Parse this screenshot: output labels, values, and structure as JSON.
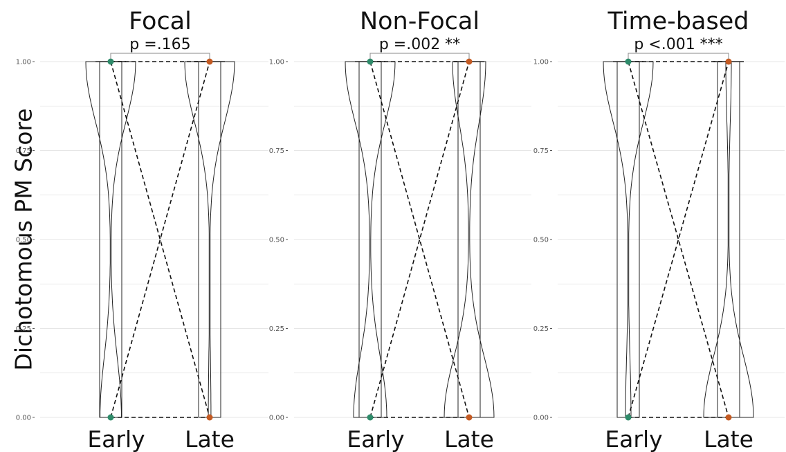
{
  "figure": {
    "ylabel": "Dichotomous PM Score",
    "colors": {
      "early": "#2e8b6a",
      "late": "#c45a22",
      "grid": "#e6e6e6",
      "outline": "#222222",
      "tick": "#555555"
    }
  },
  "chart_data": [
    {
      "type": "violin",
      "title": "Focal",
      "annotation": "p =.165",
      "categories": [
        "Early",
        "Late"
      ],
      "ylim": [
        0,
        1
      ],
      "yticks": [
        "0.00",
        "0.25",
        "0.50",
        "0.75",
        "1.00"
      ],
      "grid": true,
      "means": {
        "Early": [
          1.0,
          0.0
        ],
        "Late": [
          1.0,
          0.0
        ]
      },
      "proportion_at_1": {
        "Early": 0.7,
        "Late": 0.95
      }
    },
    {
      "type": "violin",
      "title": "Non-Focal",
      "annotation": "p =.002 **",
      "categories": [
        "Early",
        "Late"
      ],
      "ylim": [
        0,
        1
      ],
      "yticks": [
        "0.00",
        "0.25",
        "0.50",
        "0.75",
        "1.00"
      ],
      "grid": true,
      "means": {
        "Early": [
          1.0,
          0.0
        ],
        "Late": [
          1.0,
          0.0
        ]
      },
      "proportion_at_1": {
        "Early": 0.6,
        "Late": 0.4
      }
    },
    {
      "type": "violin",
      "title": "Time-based",
      "annotation": "p <.001 ***",
      "categories": [
        "Early",
        "Late"
      ],
      "ylim": [
        0,
        1
      ],
      "yticks": [
        "0.00",
        "0.25",
        "0.50",
        "0.75",
        "1.00"
      ],
      "grid": true,
      "means": {
        "Early": [
          1.0,
          0.0
        ],
        "Late": [
          1.0,
          0.0
        ]
      },
      "proportion_at_1": {
        "Early": 0.9,
        "Late": 0.1
      }
    }
  ]
}
